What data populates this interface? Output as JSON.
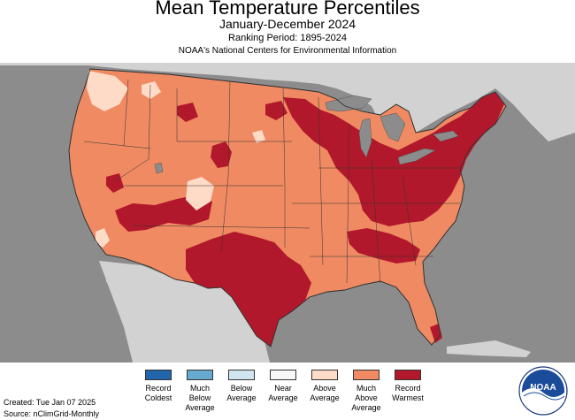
{
  "header": {
    "title": "Mean Temperature Percentiles",
    "period": "January-December 2024",
    "ranking": "Ranking Period: 1895-2024",
    "source_org": "NOAA's National Centers for Environmental Information"
  },
  "map": {
    "background_color": "#8c8c8c",
    "land_neighbor_color": "#d2d2d2",
    "water_color": "#8c8c8c",
    "categories_shown_on_map": [
      "Above Average",
      "Much Above Average",
      "Record Warmest"
    ]
  },
  "legend": {
    "items": [
      {
        "label": "Record Coldest",
        "color": "#2166ac"
      },
      {
        "label": "Much Below Average",
        "color": "#67a9cf"
      },
      {
        "label": "Below Average",
        "color": "#d1e5f0"
      },
      {
        "label": "Near Average",
        "color": "#f7f7f7"
      },
      {
        "label": "Above Average",
        "color": "#fddbc7"
      },
      {
        "label": "Much Above Average",
        "color": "#ef8a62"
      },
      {
        "label": "Record Warmest",
        "color": "#b2182b"
      }
    ]
  },
  "footer": {
    "created": "Created: Tue Jan 07 2025",
    "source": "Source: nClimGrid-Monthly"
  },
  "logo": {
    "text": "NOAA"
  }
}
